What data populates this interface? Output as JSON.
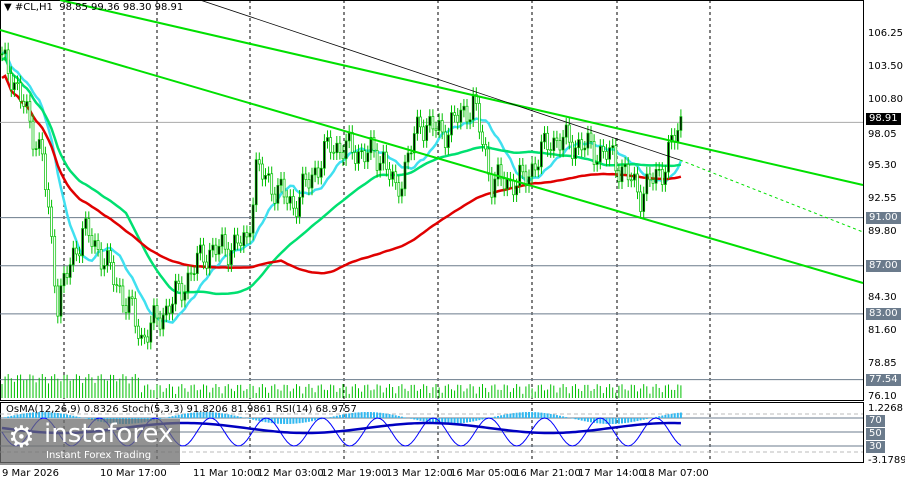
{
  "header": {
    "symbol": "#CL,H1",
    "ohlc": "98.85 99.36 98.30 98.91"
  },
  "indicator_header": "OsMA(12,26,9) 0.8326  Stoch(5,3,3) 91.8206 81.9861  RSI(14) 68.9757",
  "price_axis": [
    "106.25",
    "103.50",
    "100.80",
    "98.05",
    "95.30",
    "92.55",
    "89.80",
    "84.30",
    "81.60",
    "78.85",
    "76.10"
  ],
  "price_levels": [
    {
      "label": "98.91",
      "value": 98.91,
      "style": "black"
    },
    {
      "label": "91.00",
      "value": 91.0
    },
    {
      "label": "87.00",
      "value": 87.0
    },
    {
      "label": "83.00",
      "value": 83.0
    },
    {
      "label": "77.54",
      "value": 77.54
    }
  ],
  "indicator_axis": {
    "top": "1.2268",
    "bottom": "-3.1789",
    "levels": [
      "70",
      "50",
      "30"
    ]
  },
  "time_axis": [
    "9 Mar 2026",
    "10 Mar 17:00",
    "11 Mar 10:00",
    "12 Mar 03:00",
    "12 Mar 19:00",
    "13 Mar 12:00",
    "16 Mar 05:00",
    "16 Mar 21:00",
    "17 Mar 14:00",
    "18 Mar 07:00"
  ],
  "logo": {
    "name": "instaforex",
    "tagline": "Instant Forex Trading"
  },
  "colors": {
    "up": "#00c000",
    "ma_fast": "#40e0f0",
    "ma_mid": "#00e070",
    "ma_slow": "#e00000",
    "channel": "#00e000",
    "osma": "#30b8f0",
    "stoch": "#0000ff",
    "rsi": "#0000c0"
  },
  "chart_data": {
    "type": "candlestick",
    "symbol": "#CL",
    "timeframe": "H1",
    "close_path": [
      [
        0,
        104
      ],
      [
        3,
        103
      ],
      [
        13,
        96
      ],
      [
        18,
        84
      ],
      [
        26,
        90
      ],
      [
        32,
        88
      ],
      [
        42,
        83
      ],
      [
        45,
        81
      ],
      [
        55,
        84
      ],
      [
        65,
        88
      ],
      [
        79,
        89
      ],
      [
        82,
        95
      ],
      [
        94,
        92
      ],
      [
        106,
        97
      ],
      [
        123,
        96
      ],
      [
        127,
        93
      ],
      [
        135,
        99
      ],
      [
        142,
        98
      ],
      [
        152,
        100.5
      ],
      [
        158,
        94
      ],
      [
        168,
        94
      ],
      [
        177,
        97.5
      ],
      [
        187,
        97
      ],
      [
        197,
        96
      ],
      [
        206,
        93
      ],
      [
        213,
        95
      ],
      [
        219,
        98.9
      ]
    ],
    "ylim": [
      76.1,
      106.25
    ]
  }
}
